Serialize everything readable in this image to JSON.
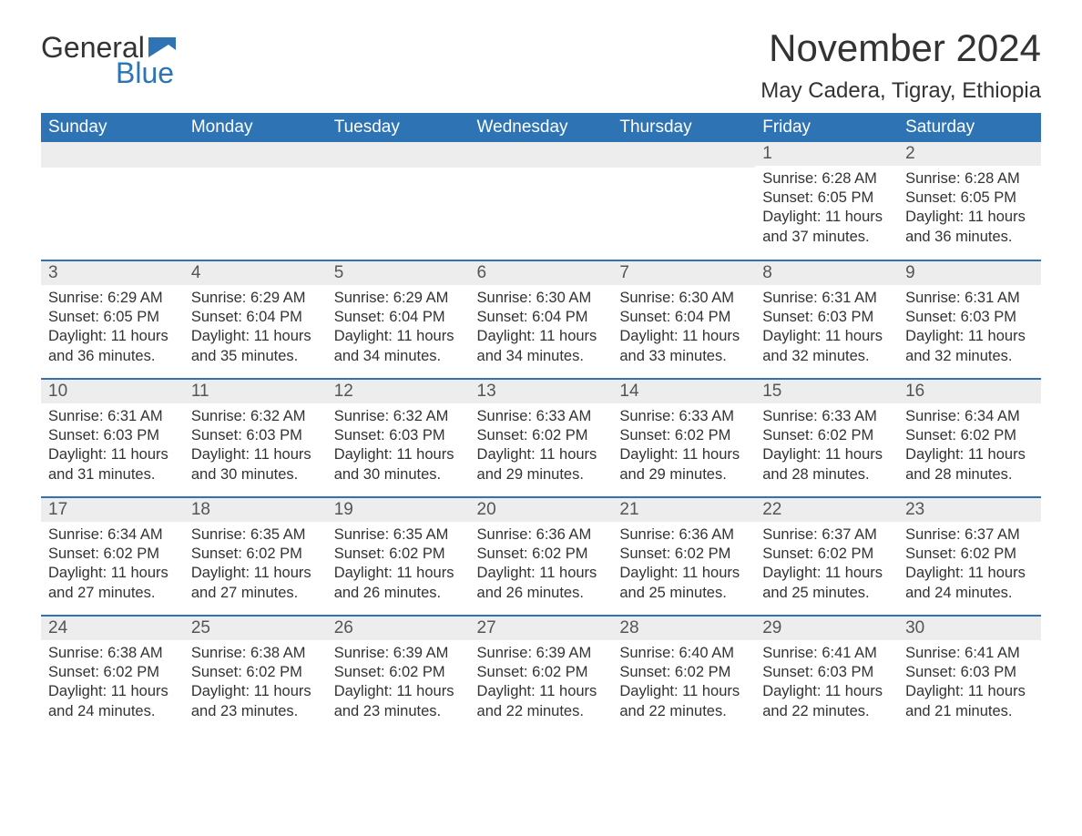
{
  "logo": {
    "text1": "General",
    "text2": "Blue",
    "accent_color": "#2e74b5",
    "text_color": "#333333"
  },
  "title": "November 2024",
  "location": "May Cadera, Tigray, Ethiopia",
  "colors": {
    "header_bg": "#2e74b5",
    "header_text": "#ffffff",
    "daynum_bg": "#ededed",
    "daynum_text": "#555555",
    "body_text": "#333333",
    "page_bg": "#ffffff",
    "row_border": "#2e74b5"
  },
  "typography": {
    "title_fontsize_pt": 32,
    "location_fontsize_pt": 18,
    "header_fontsize_pt": 14,
    "body_fontsize_pt": 12,
    "font_family": "Segoe UI"
  },
  "weekdays": [
    "Sunday",
    "Monday",
    "Tuesday",
    "Wednesday",
    "Thursday",
    "Friday",
    "Saturday"
  ],
  "labels": {
    "sunrise": "Sunrise:",
    "sunset": "Sunset:",
    "daylight": "Daylight:"
  },
  "weeks": [
    [
      null,
      null,
      null,
      null,
      null,
      {
        "day": "1",
        "sunrise": "6:28 AM",
        "sunset": "6:05 PM",
        "daylight": "11 hours and 37 minutes."
      },
      {
        "day": "2",
        "sunrise": "6:28 AM",
        "sunset": "6:05 PM",
        "daylight": "11 hours and 36 minutes."
      }
    ],
    [
      {
        "day": "3",
        "sunrise": "6:29 AM",
        "sunset": "6:05 PM",
        "daylight": "11 hours and 36 minutes."
      },
      {
        "day": "4",
        "sunrise": "6:29 AM",
        "sunset": "6:04 PM",
        "daylight": "11 hours and 35 minutes."
      },
      {
        "day": "5",
        "sunrise": "6:29 AM",
        "sunset": "6:04 PM",
        "daylight": "11 hours and 34 minutes."
      },
      {
        "day": "6",
        "sunrise": "6:30 AM",
        "sunset": "6:04 PM",
        "daylight": "11 hours and 34 minutes."
      },
      {
        "day": "7",
        "sunrise": "6:30 AM",
        "sunset": "6:04 PM",
        "daylight": "11 hours and 33 minutes."
      },
      {
        "day": "8",
        "sunrise": "6:31 AM",
        "sunset": "6:03 PM",
        "daylight": "11 hours and 32 minutes."
      },
      {
        "day": "9",
        "sunrise": "6:31 AM",
        "sunset": "6:03 PM",
        "daylight": "11 hours and 32 minutes."
      }
    ],
    [
      {
        "day": "10",
        "sunrise": "6:31 AM",
        "sunset": "6:03 PM",
        "daylight": "11 hours and 31 minutes."
      },
      {
        "day": "11",
        "sunrise": "6:32 AM",
        "sunset": "6:03 PM",
        "daylight": "11 hours and 30 minutes."
      },
      {
        "day": "12",
        "sunrise": "6:32 AM",
        "sunset": "6:03 PM",
        "daylight": "11 hours and 30 minutes."
      },
      {
        "day": "13",
        "sunrise": "6:33 AM",
        "sunset": "6:02 PM",
        "daylight": "11 hours and 29 minutes."
      },
      {
        "day": "14",
        "sunrise": "6:33 AM",
        "sunset": "6:02 PM",
        "daylight": "11 hours and 29 minutes."
      },
      {
        "day": "15",
        "sunrise": "6:33 AM",
        "sunset": "6:02 PM",
        "daylight": "11 hours and 28 minutes."
      },
      {
        "day": "16",
        "sunrise": "6:34 AM",
        "sunset": "6:02 PM",
        "daylight": "11 hours and 28 minutes."
      }
    ],
    [
      {
        "day": "17",
        "sunrise": "6:34 AM",
        "sunset": "6:02 PM",
        "daylight": "11 hours and 27 minutes."
      },
      {
        "day": "18",
        "sunrise": "6:35 AM",
        "sunset": "6:02 PM",
        "daylight": "11 hours and 27 minutes."
      },
      {
        "day": "19",
        "sunrise": "6:35 AM",
        "sunset": "6:02 PM",
        "daylight": "11 hours and 26 minutes."
      },
      {
        "day": "20",
        "sunrise": "6:36 AM",
        "sunset": "6:02 PM",
        "daylight": "11 hours and 26 minutes."
      },
      {
        "day": "21",
        "sunrise": "6:36 AM",
        "sunset": "6:02 PM",
        "daylight": "11 hours and 25 minutes."
      },
      {
        "day": "22",
        "sunrise": "6:37 AM",
        "sunset": "6:02 PM",
        "daylight": "11 hours and 25 minutes."
      },
      {
        "day": "23",
        "sunrise": "6:37 AM",
        "sunset": "6:02 PM",
        "daylight": "11 hours and 24 minutes."
      }
    ],
    [
      {
        "day": "24",
        "sunrise": "6:38 AM",
        "sunset": "6:02 PM",
        "daylight": "11 hours and 24 minutes."
      },
      {
        "day": "25",
        "sunrise": "6:38 AM",
        "sunset": "6:02 PM",
        "daylight": "11 hours and 23 minutes."
      },
      {
        "day": "26",
        "sunrise": "6:39 AM",
        "sunset": "6:02 PM",
        "daylight": "11 hours and 23 minutes."
      },
      {
        "day": "27",
        "sunrise": "6:39 AM",
        "sunset": "6:02 PM",
        "daylight": "11 hours and 22 minutes."
      },
      {
        "day": "28",
        "sunrise": "6:40 AM",
        "sunset": "6:02 PM",
        "daylight": "11 hours and 22 minutes."
      },
      {
        "day": "29",
        "sunrise": "6:41 AM",
        "sunset": "6:03 PM",
        "daylight": "11 hours and 22 minutes."
      },
      {
        "day": "30",
        "sunrise": "6:41 AM",
        "sunset": "6:03 PM",
        "daylight": "11 hours and 21 minutes."
      }
    ]
  ]
}
